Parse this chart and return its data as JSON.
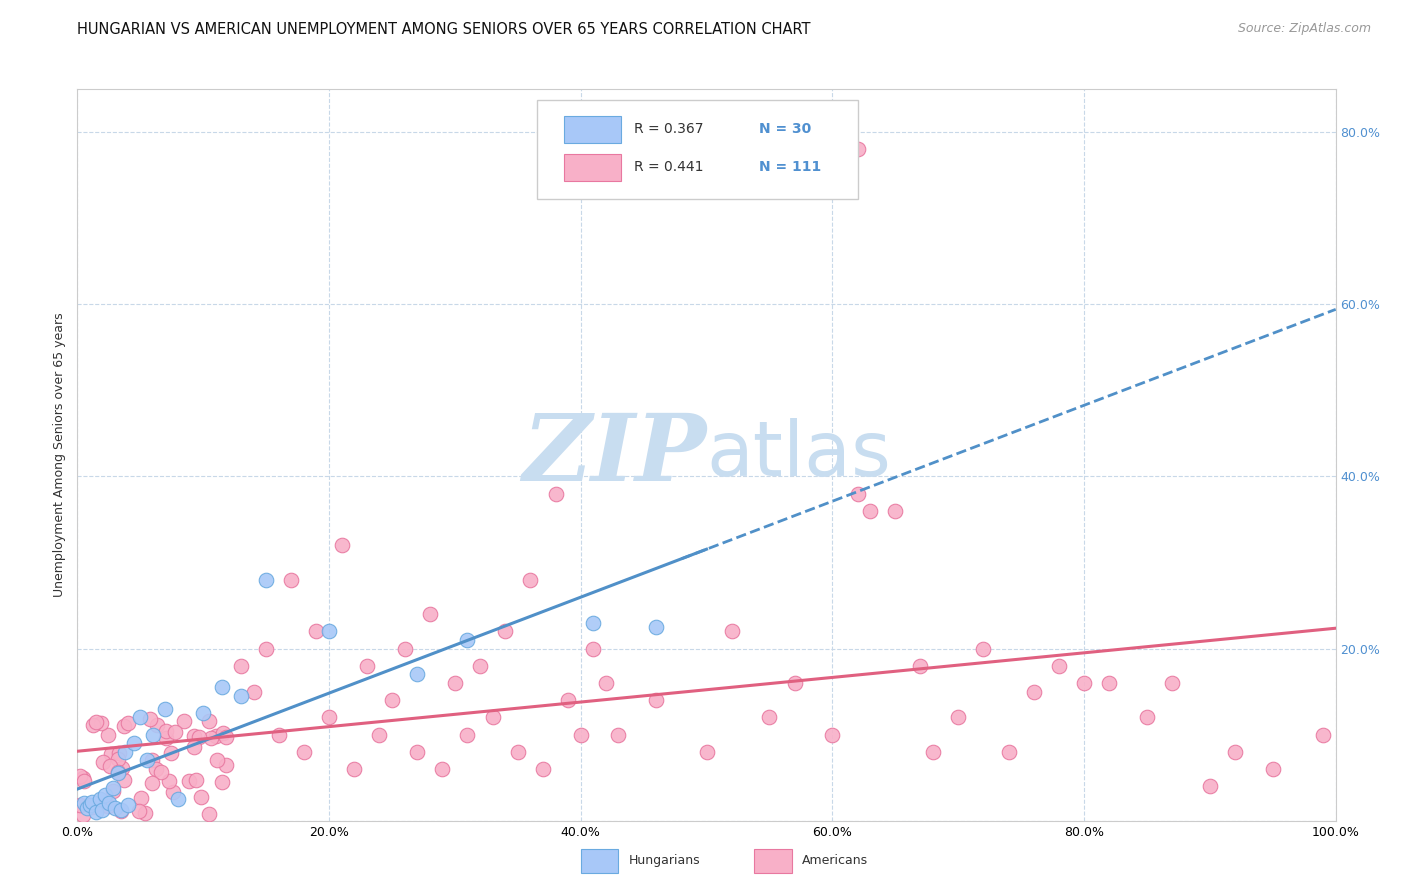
{
  "title": "HUNGARIAN VS AMERICAN UNEMPLOYMENT AMONG SENIORS OVER 65 YEARS CORRELATION CHART",
  "source": "Source: ZipAtlas.com",
  "ylabel": "Unemployment Among Seniors over 65 years",
  "xlim": [
    0.0,
    1.0
  ],
  "ylim": [
    0.0,
    0.85
  ],
  "xticklabels": [
    "0.0%",
    "20.0%",
    "40.0%",
    "60.0%",
    "80.0%",
    "100.0%"
  ],
  "yticklabels_right": [
    "",
    "20.0%",
    "40.0%",
    "60.0%",
    "80.0%"
  ],
  "legend_r_hungarian": "R = 0.367",
  "legend_n_hungarian": "N = 30",
  "legend_r_american": "R = 0.441",
  "legend_n_american": "N = 111",
  "hungarian_fill": "#a8c8f8",
  "american_fill": "#f8b0c8",
  "hungarian_edge": "#6aaae0",
  "american_edge": "#e878a0",
  "hungarian_line_color": "#5090c8",
  "american_line_color": "#e06080",
  "background_color": "#ffffff",
  "grid_color": "#c8d8e8",
  "watermark_zip_color": "#c8ddf0",
  "watermark_atlas_color": "#c8ddf0",
  "title_fontsize": 10.5,
  "source_fontsize": 9,
  "axis_label_fontsize": 9,
  "tick_fontsize": 9,
  "legend_fontsize": 10
}
